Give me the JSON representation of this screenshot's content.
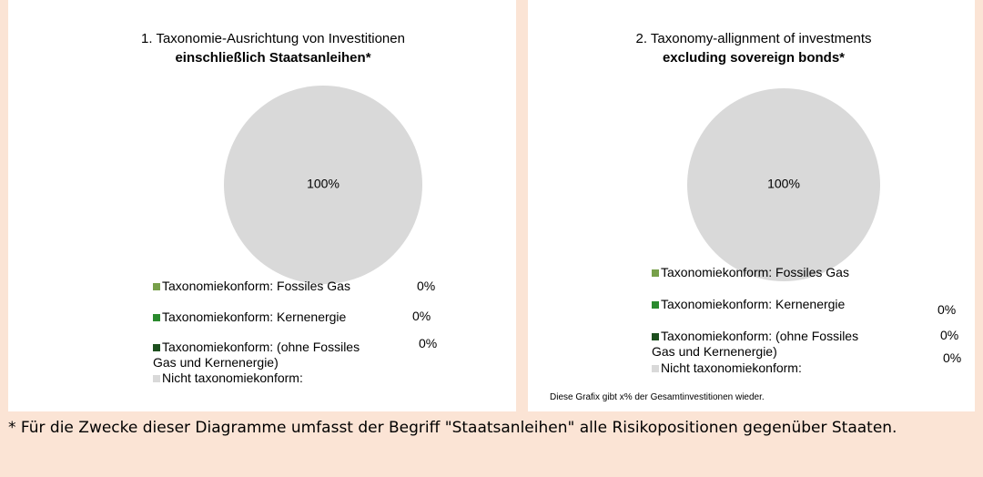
{
  "chart_data": [
    {
      "type": "pie",
      "title": "1. Taxonomie-Ausrichtung von Investitionen",
      "subtitle": "einschließlich Staatsanleihen*",
      "categories": [
        "Taxonomiekonform: Fossiles Gas",
        "Taxonomiekonform: Kernenergie",
        "Taxonomiekonform: (ohne Fossiles Gas und Kernenergie)",
        "Nicht taxonomiekonform:"
      ],
      "values": [
        0,
        0,
        0,
        100
      ],
      "value_labels": [
        "0%",
        "0%",
        "0%",
        "100%"
      ],
      "colors": [
        "#77a04a",
        "#2a8a2e",
        "#1d4f1e",
        "#d9d9d9"
      ]
    },
    {
      "type": "pie",
      "title": "2. Taxonomy-allignment of investments",
      "subtitle": "excluding sovereign bonds*",
      "categories": [
        "Taxonomiekonform: Fossiles Gas",
        "Taxonomiekonform: Kernenergie",
        "Taxonomiekonform: (ohne Fossiles Gas und Kernenergie)",
        "Nicht taxonomiekonform:"
      ],
      "values": [
        0,
        0,
        0,
        100
      ],
      "value_labels": [
        "0%",
        "0%",
        "0%",
        "100%"
      ],
      "colors": [
        "#77a04a",
        "#2a8a2e",
        "#1d4f1e",
        "#d9d9d9"
      ],
      "note": "Diese Grafix gibt x% der Gesamtinvestitionen wieder."
    }
  ],
  "footnote": "* Für die Zwecke dieser Diagramme umfasst der Begriff \"Staatsanleihen\" alle Risikopositionen gegenüber Staaten."
}
